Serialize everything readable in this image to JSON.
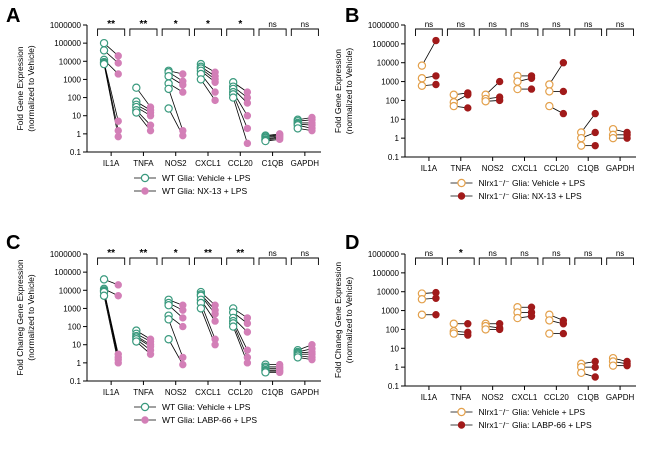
{
  "chart_data": [
    {
      "panel": "A",
      "type": "scatter",
      "subtype": "paired-dot",
      "ylabel_lines": [
        "Fold Gene Expression",
        "(normalized to  Vehicle)"
      ],
      "yscale": "log",
      "ylim": [
        0.1,
        1000000
      ],
      "yticks": [
        "0.1",
        "1",
        "10",
        "100",
        "1000",
        "10000",
        "100000",
        "1000000"
      ],
      "categories": [
        "IL1A",
        "TNFA",
        "NOS2",
        "CXCL1",
        "CCL20",
        "C1QB",
        "GAPDH"
      ],
      "significance": [
        "**",
        "**",
        "*",
        "*",
        "*",
        "ns",
        "ns"
      ],
      "series": [
        {
          "name": "WT  Glia: Vehicle + LPS",
          "marker": "open-circle",
          "color": "#3a9a7e",
          "values": [
            [
              100000,
              40000,
              12000,
              9000,
              8000,
              7000
            ],
            [
              350,
              60,
              40,
              30,
              20,
              15
            ],
            [
              3000,
              2500,
              1500,
              600,
              300,
              25
            ],
            [
              7000,
              5000,
              4000,
              3000,
              2000,
              1000
            ],
            [
              700,
              400,
              300,
              200,
              150,
              100
            ],
            [
              0.8,
              0.7,
              0.6,
              0.5,
              0.45,
              0.4
            ],
            [
              6,
              5,
              4,
              3.5,
              3,
              2
            ]
          ]
        },
        {
          "name": "WT  Glia: NX-13 + LPS",
          "marker": "filled-circle",
          "color": "#d37fb7",
          "values": [
            [
              20000,
              8000,
              2000,
              5,
              1.5,
              0.7
            ],
            [
              30,
              20,
              15,
              10,
              3,
              1.5
            ],
            [
              2000,
              800,
              500,
              200,
              1.5,
              0.8
            ],
            [
              2500,
              1500,
              1000,
              700,
              200,
              70
            ],
            [
              200,
              100,
              50,
              10,
              2,
              0.3
            ],
            [
              1,
              0.9,
              0.8,
              0.7,
              0.6,
              0.5
            ],
            [
              8,
              6,
              4,
              3,
              2,
              1.5
            ]
          ]
        }
      ]
    },
    {
      "panel": "B",
      "type": "scatter",
      "subtype": "paired-dot",
      "ylabel_lines": [
        "Fold Gene Expression",
        "(normalized to  Vehicle)"
      ],
      "yscale": "log",
      "ylim": [
        0.1,
        1000000
      ],
      "yticks": [
        "0.1",
        "1",
        "10",
        "100",
        "1000",
        "10000",
        "100000",
        "1000000"
      ],
      "categories": [
        "IL1A",
        "TNFA",
        "NOS2",
        "CXCL1",
        "CCL20",
        "C1QB",
        "GAPDH"
      ],
      "significance": [
        "ns",
        "ns",
        "ns",
        "ns",
        "ns",
        "ns",
        "ns"
      ],
      "series": [
        {
          "name": "Nlrx1⁻/⁻ Glia: Vehicle + LPS",
          "marker": "open-circle",
          "color": "#e3a04b",
          "values": [
            [
              7000,
              1500,
              600
            ],
            [
              200,
              80,
              50
            ],
            [
              200,
              120,
              90
            ],
            [
              2000,
              1000,
              400
            ],
            [
              700,
              300,
              50
            ],
            [
              2,
              1,
              0.4
            ],
            [
              3,
              1.5,
              1
            ]
          ]
        },
        {
          "name": "Nlrx1⁻/⁻ Glia: NX-13 + LPS",
          "marker": "filled-circle",
          "color": "#a11a1a",
          "values": [
            [
              150000,
              2000,
              700
            ],
            [
              250,
              200,
              40
            ],
            [
              1000,
              150,
              100
            ],
            [
              2000,
              1500,
              400
            ],
            [
              10000,
              300,
              20
            ],
            [
              20,
              2,
              0.4
            ],
            [
              2,
              1.5,
              1
            ]
          ]
        }
      ]
    },
    {
      "panel": "C",
      "type": "scatter",
      "subtype": "paired-dot",
      "ylabel_lines": [
        "Fold Chaneg Gene Expression",
        "(normalized to  Vehicle)"
      ],
      "yscale": "log",
      "ylim": [
        0.1,
        1000000
      ],
      "yticks": [
        "0.1",
        "1",
        "10",
        "100",
        "1000",
        "10000",
        "100000",
        "1000000"
      ],
      "categories": [
        "IL1A",
        "TNFA",
        "NOS2",
        "CXCL1",
        "CCL20",
        "C1QB",
        "GAPDH"
      ],
      "significance": [
        "**",
        "**",
        "*",
        "**",
        "**",
        "ns",
        "ns"
      ],
      "series": [
        {
          "name": "WT Glia: Vehicle + LPS",
          "marker": "open-circle",
          "color": "#3a9a7e",
          "values": [
            [
              40000,
              12000,
              10000,
              9000,
              8000,
              5000
            ],
            [
              60,
              40,
              30,
              25,
              20,
              15
            ],
            [
              3000,
              2000,
              1500,
              400,
              250,
              20
            ],
            [
              8000,
              6000,
              5000,
              3000,
              2000,
              1000
            ],
            [
              1000,
              600,
              300,
              200,
              150,
              100
            ],
            [
              0.8,
              0.6,
              0.5,
              0.4,
              0.35,
              0.3
            ],
            [
              5,
              4,
              3.5,
              3,
              2.5,
              2
            ]
          ]
        },
        {
          "name": "WT Glia: LABP-66 + LPS",
          "marker": "filled-circle",
          "color": "#d37fb7",
          "values": [
            [
              20000,
              5000,
              3,
              2,
              1.5,
              1
            ],
            [
              20,
              15,
              10,
              8,
              5,
              3
            ],
            [
              1500,
              800,
              300,
              100,
              2,
              0.8
            ],
            [
              1500,
              800,
              500,
              200,
              20,
              10
            ],
            [
              300,
              150,
              50,
              5,
              2,
              1
            ],
            [
              0.8,
              0.6,
              0.5,
              0.4,
              0.35,
              0.3
            ],
            [
              10,
              6,
              4,
              3,
              2,
              1.5
            ]
          ]
        }
      ]
    },
    {
      "panel": "D",
      "type": "scatter",
      "subtype": "paired-dot",
      "ylabel_lines": [
        "Fold Chaneg Gene Expression",
        "(normalized to  Vehicle)"
      ],
      "yscale": "log",
      "ylim": [
        0.1,
        1000000
      ],
      "yticks": [
        "0.1",
        "1",
        "10",
        "100",
        "1000",
        "10000",
        "100000",
        "1000000"
      ],
      "categories": [
        "IL1A",
        "TNFA",
        "NOS2",
        "CXCL1",
        "CCL20",
        "C1QB",
        "GAPDH"
      ],
      "significance": [
        "ns",
        "*",
        "ns",
        "ns",
        "ns",
        "ns",
        "ns"
      ],
      "series": [
        {
          "name": "Nlrx1⁻/⁻ Glia: Vehicle + LPS",
          "marker": "open-circle",
          "color": "#e3a04b",
          "values": [
            [
              8000,
              4000,
              600
            ],
            [
              200,
              80,
              60
            ],
            [
              200,
              150,
              100
            ],
            [
              1500,
              800,
              400
            ],
            [
              600,
              300,
              60
            ],
            [
              1.5,
              1,
              0.5
            ],
            [
              3,
              2,
              1.2
            ]
          ]
        },
        {
          "name": "Nlrx1⁻/⁻ Glia: LABP-66 + LPS",
          "marker": "filled-circle",
          "color": "#a11a1a",
          "values": [
            [
              9000,
              4500,
              600
            ],
            [
              200,
              70,
              50
            ],
            [
              200,
              120,
              100
            ],
            [
              1500,
              800,
              500
            ],
            [
              300,
              200,
              60
            ],
            [
              2,
              1,
              0.3
            ],
            [
              2,
              1.5,
              1.2
            ]
          ]
        }
      ]
    }
  ]
}
